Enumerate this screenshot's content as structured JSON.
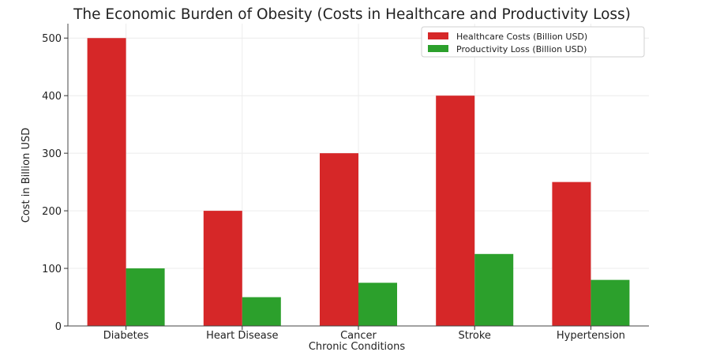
{
  "chart_data": {
    "type": "bar",
    "title": "The Economic Burden of Obesity (Costs in Healthcare and Productivity Loss)",
    "xlabel": "Chronic Conditions",
    "ylabel": "Cost in Billion USD",
    "categories": [
      "Diabetes",
      "Heart Disease",
      "Cancer",
      "Stroke",
      "Hypertension"
    ],
    "series": [
      {
        "name": "Healthcare Costs (Billion USD)",
        "color": "#d62728",
        "values": [
          500,
          200,
          300,
          400,
          250
        ]
      },
      {
        "name": "Productivity Loss (Billion USD)",
        "color": "#2ca02c",
        "values": [
          100,
          50,
          75,
          125,
          80
        ]
      }
    ],
    "ylim": [
      0,
      525
    ],
    "yticks": [
      0,
      100,
      200,
      300,
      400,
      500
    ],
    "grid": true,
    "legend_position": "top-right"
  }
}
